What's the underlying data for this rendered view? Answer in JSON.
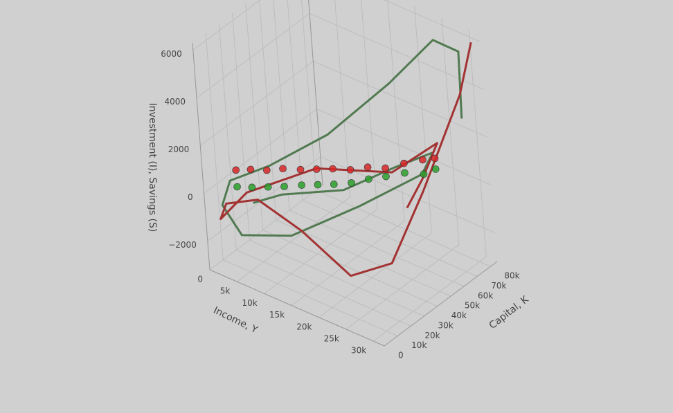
{
  "chart_data": {
    "type": "scatter3d",
    "x_title": "Income, Y",
    "y_title": "Capital, K",
    "z_title": "Investment (I), Savings (S)",
    "xlim": [
      0,
      32000
    ],
    "ylim": [
      0,
      85000
    ],
    "zlim": [
      -3200,
      6300
    ],
    "xticks": [
      0,
      {
        "value": 5000,
        "label": "5k"
      },
      {
        "value": 10000,
        "label": "10k"
      },
      {
        "value": 15000,
        "label": "15k"
      },
      {
        "value": 20000,
        "label": "20k"
      },
      {
        "value": 25000,
        "label": "25k"
      },
      {
        "value": 30000,
        "label": "30k"
      }
    ],
    "yticks": [
      0,
      {
        "value": 10000,
        "label": "10k"
      },
      {
        "value": 20000,
        "label": "20k"
      },
      {
        "value": 30000,
        "label": "30k"
      },
      {
        "value": 40000,
        "label": "40k"
      },
      {
        "value": 50000,
        "label": "50k"
      },
      {
        "value": 60000,
        "label": "60k"
      },
      {
        "value": 70000,
        "label": "70k"
      },
      {
        "value": 80000,
        "label": "80k"
      }
    ],
    "zticks": [
      {
        "value": -2000,
        "label": "−2000"
      },
      0,
      2000,
      4000,
      6000
    ],
    "grid": true,
    "series": [
      {
        "mode": "lines",
        "color": "#517a51",
        "x": [
          30000,
          29000,
          27000,
          22000,
          15000,
          8000,
          3000,
          2000,
          5000,
          12000,
          20000,
          27000,
          28000,
          24000,
          18000,
          10000,
          6000
        ],
        "y": [
          75000,
          80000,
          70000,
          55000,
          35000,
          18000,
          8000,
          5000,
          6000,
          15000,
          35000,
          55000,
          60000,
          48000,
          32000,
          18000,
          12000
        ],
        "z": [
          3000,
          5500,
          6200,
          4500,
          2500,
          1200,
          500,
          -500,
          -1500,
          -1200,
          0,
          1200,
          2000,
          1500,
          600,
          200,
          -300
        ]
      },
      {
        "mode": "lines",
        "color": "#a33232",
        "x": [
          31000,
          30000,
          27000,
          24000,
          20000,
          14000,
          8000,
          3000,
          2000,
          6000,
          15000,
          24000,
          29000,
          27000,
          25000
        ],
        "y": [
          82000,
          75000,
          55000,
          40000,
          25000,
          15000,
          8000,
          4000,
          3000,
          8000,
          25000,
          45000,
          60000,
          55000,
          50000
        ],
        "z": [
          6000,
          4000,
          500,
          -2200,
          -2500,
          -800,
          200,
          -300,
          -1000,
          300,
          1500,
          1400,
          2500,
          1000,
          -200
        ]
      },
      {
        "mode": "markers",
        "color": "#d62728",
        "x": [
          4000,
          6000,
          8000,
          10000,
          12000,
          14000,
          16000,
          18000,
          20000,
          22000,
          24000,
          26000,
          27000
        ],
        "y": [
          9000,
          12000,
          16000,
          20000,
          25000,
          29000,
          33000,
          38000,
          43000,
          48000,
          54000,
          60000,
          65000
        ],
        "z": [
          1000,
          1100,
          1100,
          1200,
          1150,
          1200,
          1250,
          1200,
          1300,
          1250,
          1400,
          1500,
          1450
        ]
      },
      {
        "mode": "markers",
        "color": "#2ca02c",
        "x": [
          4000,
          6000,
          8000,
          10000,
          12000,
          14000,
          16000,
          18000,
          20000,
          22000,
          24000,
          26000,
          27000
        ],
        "y": [
          9000,
          12000,
          16000,
          20000,
          25000,
          29000,
          33000,
          38000,
          43000,
          48000,
          54000,
          60000,
          65000
        ],
        "z": [
          300,
          350,
          400,
          450,
          500,
          550,
          600,
          650,
          800,
          900,
          1000,
          900,
          1000
        ]
      }
    ]
  }
}
